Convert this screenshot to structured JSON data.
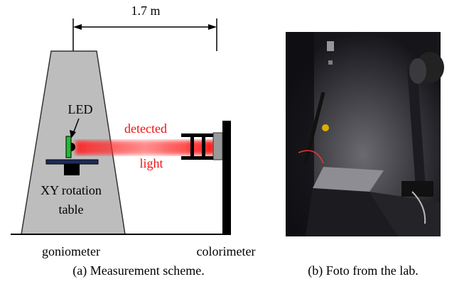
{
  "scheme": {
    "distance": "1.7 m",
    "led": "LED",
    "beam_top": "detected",
    "beam_bottom": "light",
    "table_line1": "XY rotation",
    "table_line2": "table",
    "goniometer": "goniometer",
    "colorimeter": "colorimeter"
  },
  "captions": {
    "a": "(a) Measurement scheme.",
    "b": "(b) Foto from the lab."
  }
}
